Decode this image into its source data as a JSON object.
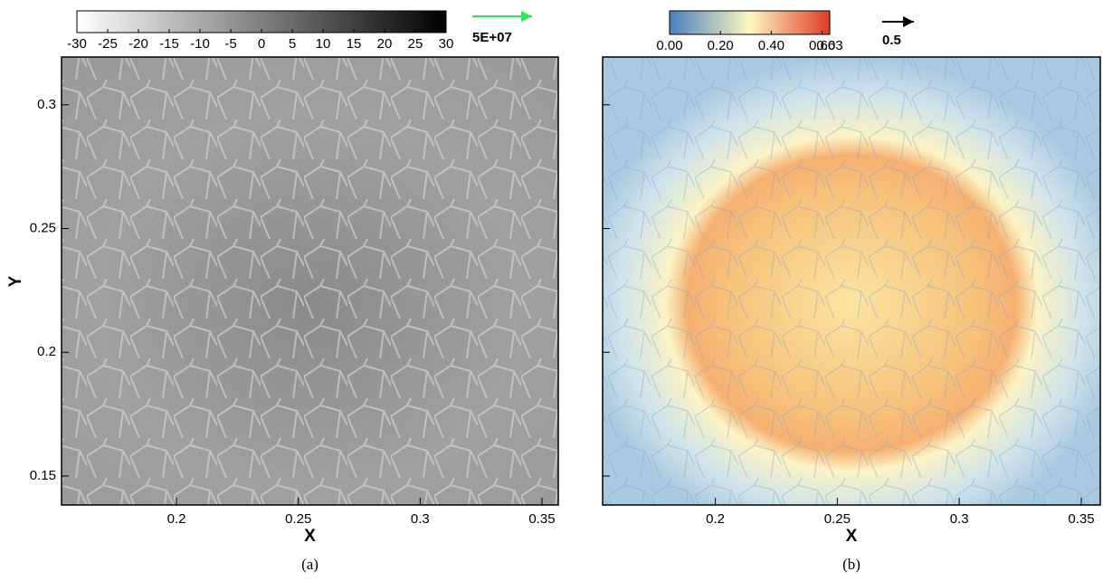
{
  "chart_data": [
    {
      "type": "vector_field",
      "xlabel": "X",
      "ylabel": "Y",
      "caption": "(a)",
      "xlim": [
        0.1528,
        0.3567
      ],
      "xticks": [
        0.2,
        0.25,
        0.3,
        0.35
      ],
      "ylim": [
        0.1383,
        0.3193
      ],
      "yticks": [
        0.15,
        0.2,
        0.25,
        0.3
      ],
      "colorbar": {
        "lim": [
          -30,
          30
        ],
        "ticks": [
          -30,
          -25,
          -20,
          -15,
          -10,
          -5,
          0,
          5,
          10,
          15,
          20,
          25,
          30
        ],
        "colors": [
          "#ffffff",
          "#000000"
        ]
      },
      "vector_color": "#22ee55",
      "reference_vector_label": "5E+07"
    },
    {
      "type": "vector_field",
      "xlabel": "X",
      "caption": "(b)",
      "xlim": [
        0.1538,
        0.3578
      ],
      "xticks": [
        0.2,
        0.25,
        0.3,
        0.35
      ],
      "ylim": [
        0.1383,
        0.3193
      ],
      "yticks": [
        0.15,
        0.2,
        0.25,
        0.3
      ],
      "ytick_labels": false,
      "colorbar": {
        "lim": [
          0,
          0.63
        ],
        "ticks": [
          {
            "value": 0,
            "label": "0.00"
          },
          {
            "value": 0.2,
            "label": "0.20"
          },
          {
            "value": 0.4,
            "label": "0.40"
          },
          {
            "value": 0.6,
            "label": "0.60"
          },
          {
            "value": 0.63,
            "label": "0.63"
          }
        ],
        "colors": [
          "#4a7fc0",
          "#fdf7c0",
          "#e03a2a"
        ]
      },
      "vector_color": "#000000",
      "reference_vector_label": "0.5"
    }
  ]
}
